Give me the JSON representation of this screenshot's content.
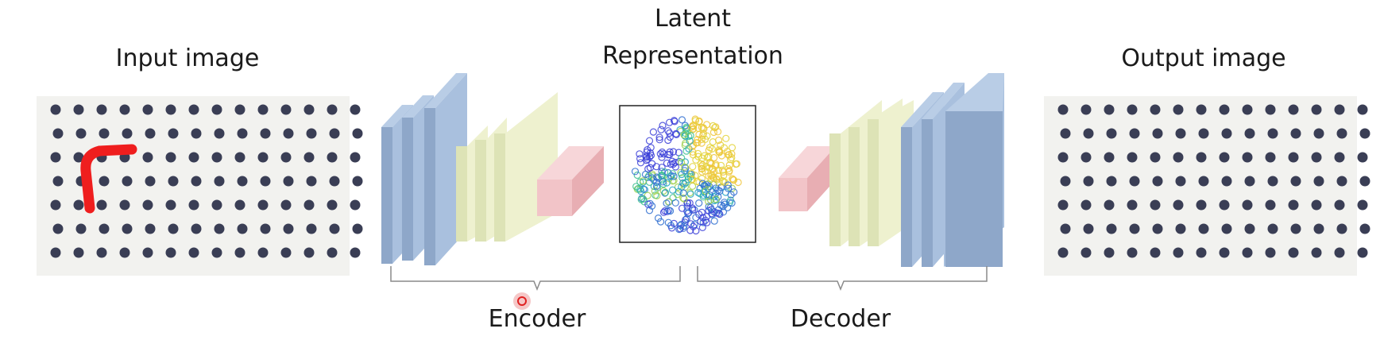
{
  "labels": {
    "input": "Input image",
    "latent_line1": "Latent",
    "latent_line2": "Representation",
    "output": "Output image",
    "encoder": "Encoder",
    "decoder": "Decoder"
  },
  "colors": {
    "blue_layer": "#8ea7c9",
    "blue_layer_side": "#a9c0de",
    "yellow_layer": "#dde3b6",
    "yellow_layer_side": "#eef1cf",
    "pink_layer": "#f2c4c8",
    "pink_layer_top": "#f7d6d9",
    "fabric": "#f2f2ef",
    "dot": "#3a3e55",
    "defect": "#ef1e1e",
    "bracket": "#8a8a8a"
  },
  "icons": {
    "defect_mark": "red-curve-defect",
    "cursor": "red-circle-cursor"
  }
}
